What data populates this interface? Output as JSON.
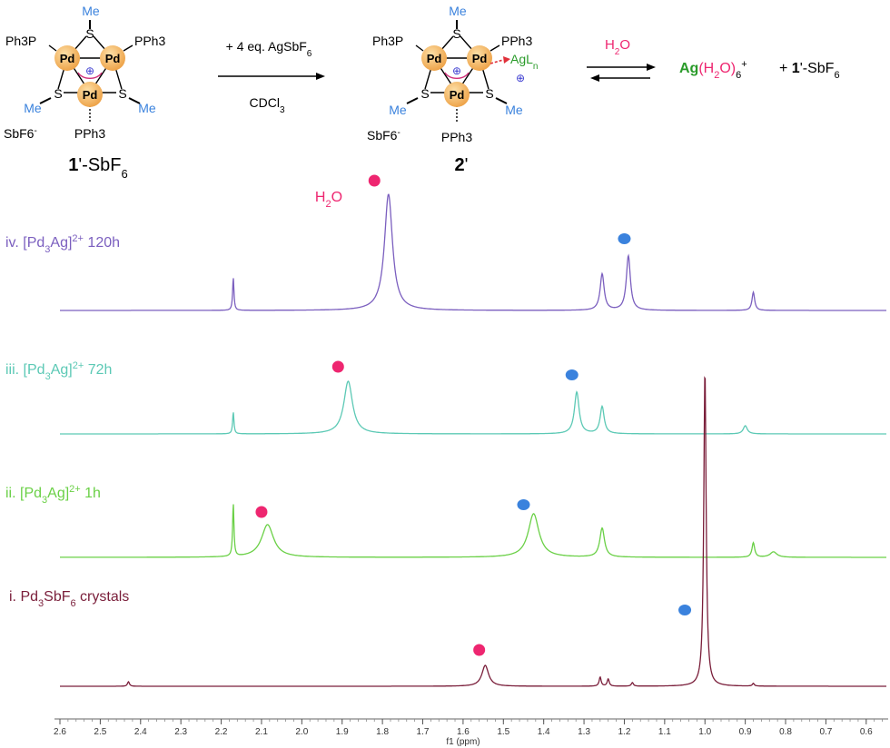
{
  "scheme": {
    "reactant": {
      "ligands": [
        "Ph3P",
        "PPh3",
        "PPh3"
      ],
      "metal": "Pd",
      "sulfur": "S",
      "methyl": "Me",
      "counterion": "SbF6",
      "counterion_charge": "-",
      "charge_symbol": "⊕",
      "label_number": "1",
      "label_rest": "'-SbF",
      "label_sub": "6"
    },
    "reagent_line1": "+ 4 eq. AgSbF",
    "reagent_line1_sub": "6",
    "reagent_line2": "CDCl",
    "reagent_line2_sub": "3",
    "product": {
      "silver": "AgL",
      "silver_sub": "n",
      "label": "2",
      "label_prime": "'"
    },
    "water": "H",
    "water_sub": "2",
    "water_end": "O",
    "final_product_ag": "Ag",
    "final_product_h": "(H",
    "final_product_sub": "2",
    "final_product_o": "O)",
    "final_product_six": "6",
    "final_product_plus": "+",
    "final_product_2_pre": "+ ",
    "final_product_2_num": "1",
    "final_product_2_rest": "'-SbF",
    "final_product_2_sub": "6"
  },
  "chart_data": {
    "type": "line",
    "xlabel": "f1 (ppm)",
    "x_reversed": true,
    "xlim": [
      2.6,
      0.55
    ],
    "xticks": [
      "2.6",
      "2.5",
      "2.4",
      "2.3",
      "2.2",
      "2.1",
      "2.0",
      "1.9",
      "1.8",
      "1.7",
      "1.6",
      "1.5",
      "1.4",
      "1.3",
      "1.2",
      "1.1",
      "1.0",
      "0.9",
      "0.8",
      "0.7",
      "0.6"
    ],
    "water_annotation": {
      "text_h": "H",
      "text_sub": "2",
      "text_o": "O"
    },
    "series": [
      {
        "name_prefix": "iv. [Pd",
        "name_sub": "3",
        "name_mid": "Ag]",
        "name_sup": "2+",
        "name_suffix": " 120h",
        "color": "#7b5fbf",
        "peaks": [
          {
            "x": 2.17,
            "h": 36,
            "w": 0.002
          },
          {
            "x": 1.785,
            "h": 128,
            "w": 0.012
          },
          {
            "x": 1.255,
            "h": 40,
            "w": 0.006
          },
          {
            "x": 1.19,
            "h": 60,
            "w": 0.006
          },
          {
            "x": 0.88,
            "h": 20,
            "w": 0.004
          }
        ],
        "water_marker_x": 1.82,
        "methyl_marker_x": 1.2
      },
      {
        "name_prefix": "iii. [Pd",
        "name_sub": "3",
        "name_mid": "Ag]",
        "name_sup": "2+",
        "name_suffix": " 72h",
        "color": "#5cc9b5",
        "peaks": [
          {
            "x": 2.17,
            "h": 24,
            "w": 0.002
          },
          {
            "x": 1.885,
            "h": 58,
            "w": 0.013
          },
          {
            "x": 1.318,
            "h": 46,
            "w": 0.007
          },
          {
            "x": 1.255,
            "h": 30,
            "w": 0.006
          },
          {
            "x": 0.9,
            "h": 9,
            "w": 0.006
          }
        ],
        "water_marker_x": 1.91,
        "methyl_marker_x": 1.33
      },
      {
        "name_prefix": "ii. [Pd",
        "name_sub": "3",
        "name_mid": "Ag]",
        "name_sup": "2+",
        "name_suffix": " 1h",
        "color": "#6ad046",
        "peaks": [
          {
            "x": 2.17,
            "h": 58,
            "w": 0.002
          },
          {
            "x": 2.085,
            "h": 36,
            "w": 0.018
          },
          {
            "x": 1.425,
            "h": 48,
            "w": 0.016
          },
          {
            "x": 1.255,
            "h": 32,
            "w": 0.007
          },
          {
            "x": 0.88,
            "h": 16,
            "w": 0.004
          },
          {
            "x": 0.83,
            "h": 6,
            "w": 0.01
          }
        ],
        "water_marker_x": 2.1,
        "methyl_marker_x": 1.45
      },
      {
        "name_prefix": "i. Pd",
        "name_sub": "3",
        "name_mid": "SbF",
        "name_sup": "",
        "name_sub2": "6",
        "name_suffix": " crystals",
        "color": "#7a1e3a",
        "peaks": [
          {
            "x": 2.43,
            "h": 5,
            "w": 0.003
          },
          {
            "x": 1.545,
            "h": 23,
            "w": 0.01
          },
          {
            "x": 1.26,
            "h": 10,
            "w": 0.003
          },
          {
            "x": 1.24,
            "h": 8,
            "w": 0.003
          },
          {
            "x": 1.18,
            "h": 4,
            "w": 0.003
          },
          {
            "x": 1.0,
            "h": 348,
            "w": 0.0035
          },
          {
            "x": 0.88,
            "h": 3,
            "w": 0.003
          }
        ],
        "water_marker_x": 1.56,
        "methyl_marker_x": 1.05
      }
    ]
  },
  "colors": {
    "water_marker": "#ee2670",
    "methyl_marker": "#3a82dd",
    "water_label": "#ee2670",
    "me_blue": "#3a82dd",
    "pd_orange": "#f5b860",
    "ag_green": "#2a9b2a"
  }
}
